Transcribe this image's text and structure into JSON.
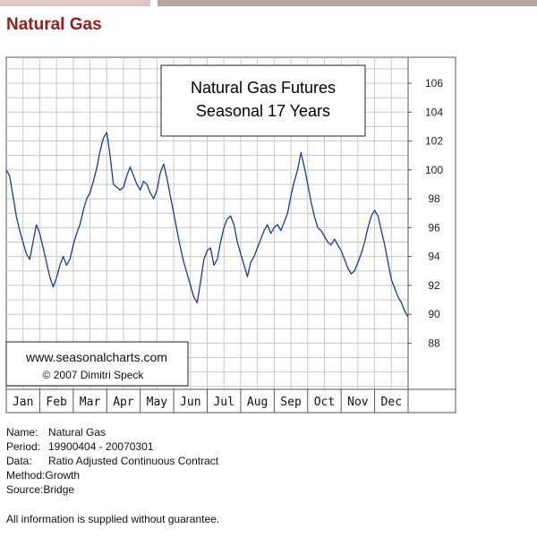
{
  "page": {
    "title": "Natural Gas"
  },
  "chart_data": {
    "type": "line",
    "title": "Natural Gas Futures\nSeasonal 17 Years",
    "title_lines": [
      "Natural Gas Futures",
      "Seasonal 17 Years"
    ],
    "watermark_lines": [
      "www.seasonalcharts.com",
      "© 2007   Dimitri Speck"
    ],
    "xlabel": "",
    "ylabel": "",
    "months": [
      "Jan",
      "Feb",
      "Mar",
      "Apr",
      "May",
      "Jun",
      "Jul",
      "Aug",
      "Sep",
      "Oct",
      "Nov",
      "Dec"
    ],
    "y_ticks": [
      88,
      90,
      92,
      94,
      96,
      98,
      100,
      102,
      104,
      106
    ],
    "ylim": [
      84.8,
      107.8
    ],
    "grid": true,
    "line_color": "#1a3a9c",
    "series": [
      {
        "name": "",
        "x": [
          0.0,
          0.1,
          0.2,
          0.3,
          0.4,
          0.5,
          0.6,
          0.7,
          0.8,
          0.9,
          1.0,
          1.1,
          1.2,
          1.3,
          1.4,
          1.5,
          1.6,
          1.7,
          1.8,
          1.9,
          2.0,
          2.1,
          2.2,
          2.3,
          2.4,
          2.5,
          2.6,
          2.7,
          2.8,
          2.9,
          3.0,
          3.1,
          3.2,
          3.3,
          3.4,
          3.5,
          3.6,
          3.7,
          3.8,
          3.9,
          4.0,
          4.1,
          4.2,
          4.3,
          4.4,
          4.5,
          4.6,
          4.7,
          4.8,
          4.9,
          5.0,
          5.1,
          5.2,
          5.3,
          5.4,
          5.5,
          5.6,
          5.7,
          5.8,
          5.9,
          6.0,
          6.1,
          6.2,
          6.3,
          6.4,
          6.5,
          6.6,
          6.7,
          6.8,
          6.9,
          7.0,
          7.1,
          7.2,
          7.3,
          7.4,
          7.5,
          7.6,
          7.7,
          7.8,
          7.9,
          8.0,
          8.1,
          8.2,
          8.3,
          8.4,
          8.5,
          8.6,
          8.7,
          8.8,
          8.9,
          9.0,
          9.1,
          9.2,
          9.3,
          9.4,
          9.5,
          9.6,
          9.7,
          9.8,
          9.9,
          10.0,
          10.1,
          10.2,
          10.3,
          10.4,
          10.5,
          10.6,
          10.7,
          10.8,
          10.9,
          11.0,
          11.1,
          11.2,
          11.3,
          11.4,
          11.5,
          11.6,
          11.7,
          11.8,
          11.9,
          12.0
        ],
        "values": [
          100.0,
          99.6,
          98.2,
          96.8,
          95.8,
          95.0,
          94.2,
          93.8,
          95.0,
          96.2,
          95.6,
          94.6,
          93.6,
          92.6,
          91.9,
          92.5,
          93.4,
          94.0,
          93.4,
          93.8,
          94.8,
          95.6,
          96.2,
          97.2,
          98.0,
          98.4,
          99.2,
          100.1,
          101.3,
          102.2,
          102.6,
          101.0,
          99.0,
          98.8,
          98.6,
          98.8,
          99.6,
          100.2,
          99.6,
          99.0,
          98.6,
          99.2,
          99.0,
          98.4,
          98.0,
          98.6,
          99.8,
          100.4,
          99.4,
          98.2,
          97.0,
          95.8,
          94.6,
          93.6,
          92.8,
          92.0,
          91.2,
          90.8,
          92.2,
          93.8,
          94.4,
          94.6,
          93.4,
          93.8,
          95.0,
          96.0,
          96.6,
          96.8,
          96.2,
          95.0,
          94.2,
          93.4,
          92.6,
          93.6,
          94.0,
          94.6,
          95.2,
          95.8,
          96.2,
          95.6,
          96.0,
          96.2,
          95.8,
          96.4,
          97.0,
          98.2,
          99.2,
          100.0,
          101.2,
          100.2,
          99.0,
          97.8,
          96.8,
          96.0,
          95.8,
          95.4,
          95.0,
          94.8,
          95.2,
          94.8,
          94.4,
          93.8,
          93.2,
          92.8,
          93.0,
          93.6,
          94.2,
          95.0,
          96.0,
          96.8,
          97.2,
          96.8,
          95.8,
          94.8,
          93.6,
          92.4,
          91.8,
          91.2,
          90.8,
          90.2,
          89.8
        ]
      }
    ]
  },
  "info": {
    "rows": [
      {
        "key": "Name:",
        "value": "Natural Gas"
      },
      {
        "key": "Period:",
        "value": "19900404 - 20070301"
      },
      {
        "key": "Data:",
        "value": "Ratio Adjusted Continuous Contract"
      },
      {
        "key": "Method:",
        "value": "Growth"
      },
      {
        "key": "Source:",
        "value": "Bridge"
      }
    ],
    "footer": "All information is supplied without guarantee."
  }
}
